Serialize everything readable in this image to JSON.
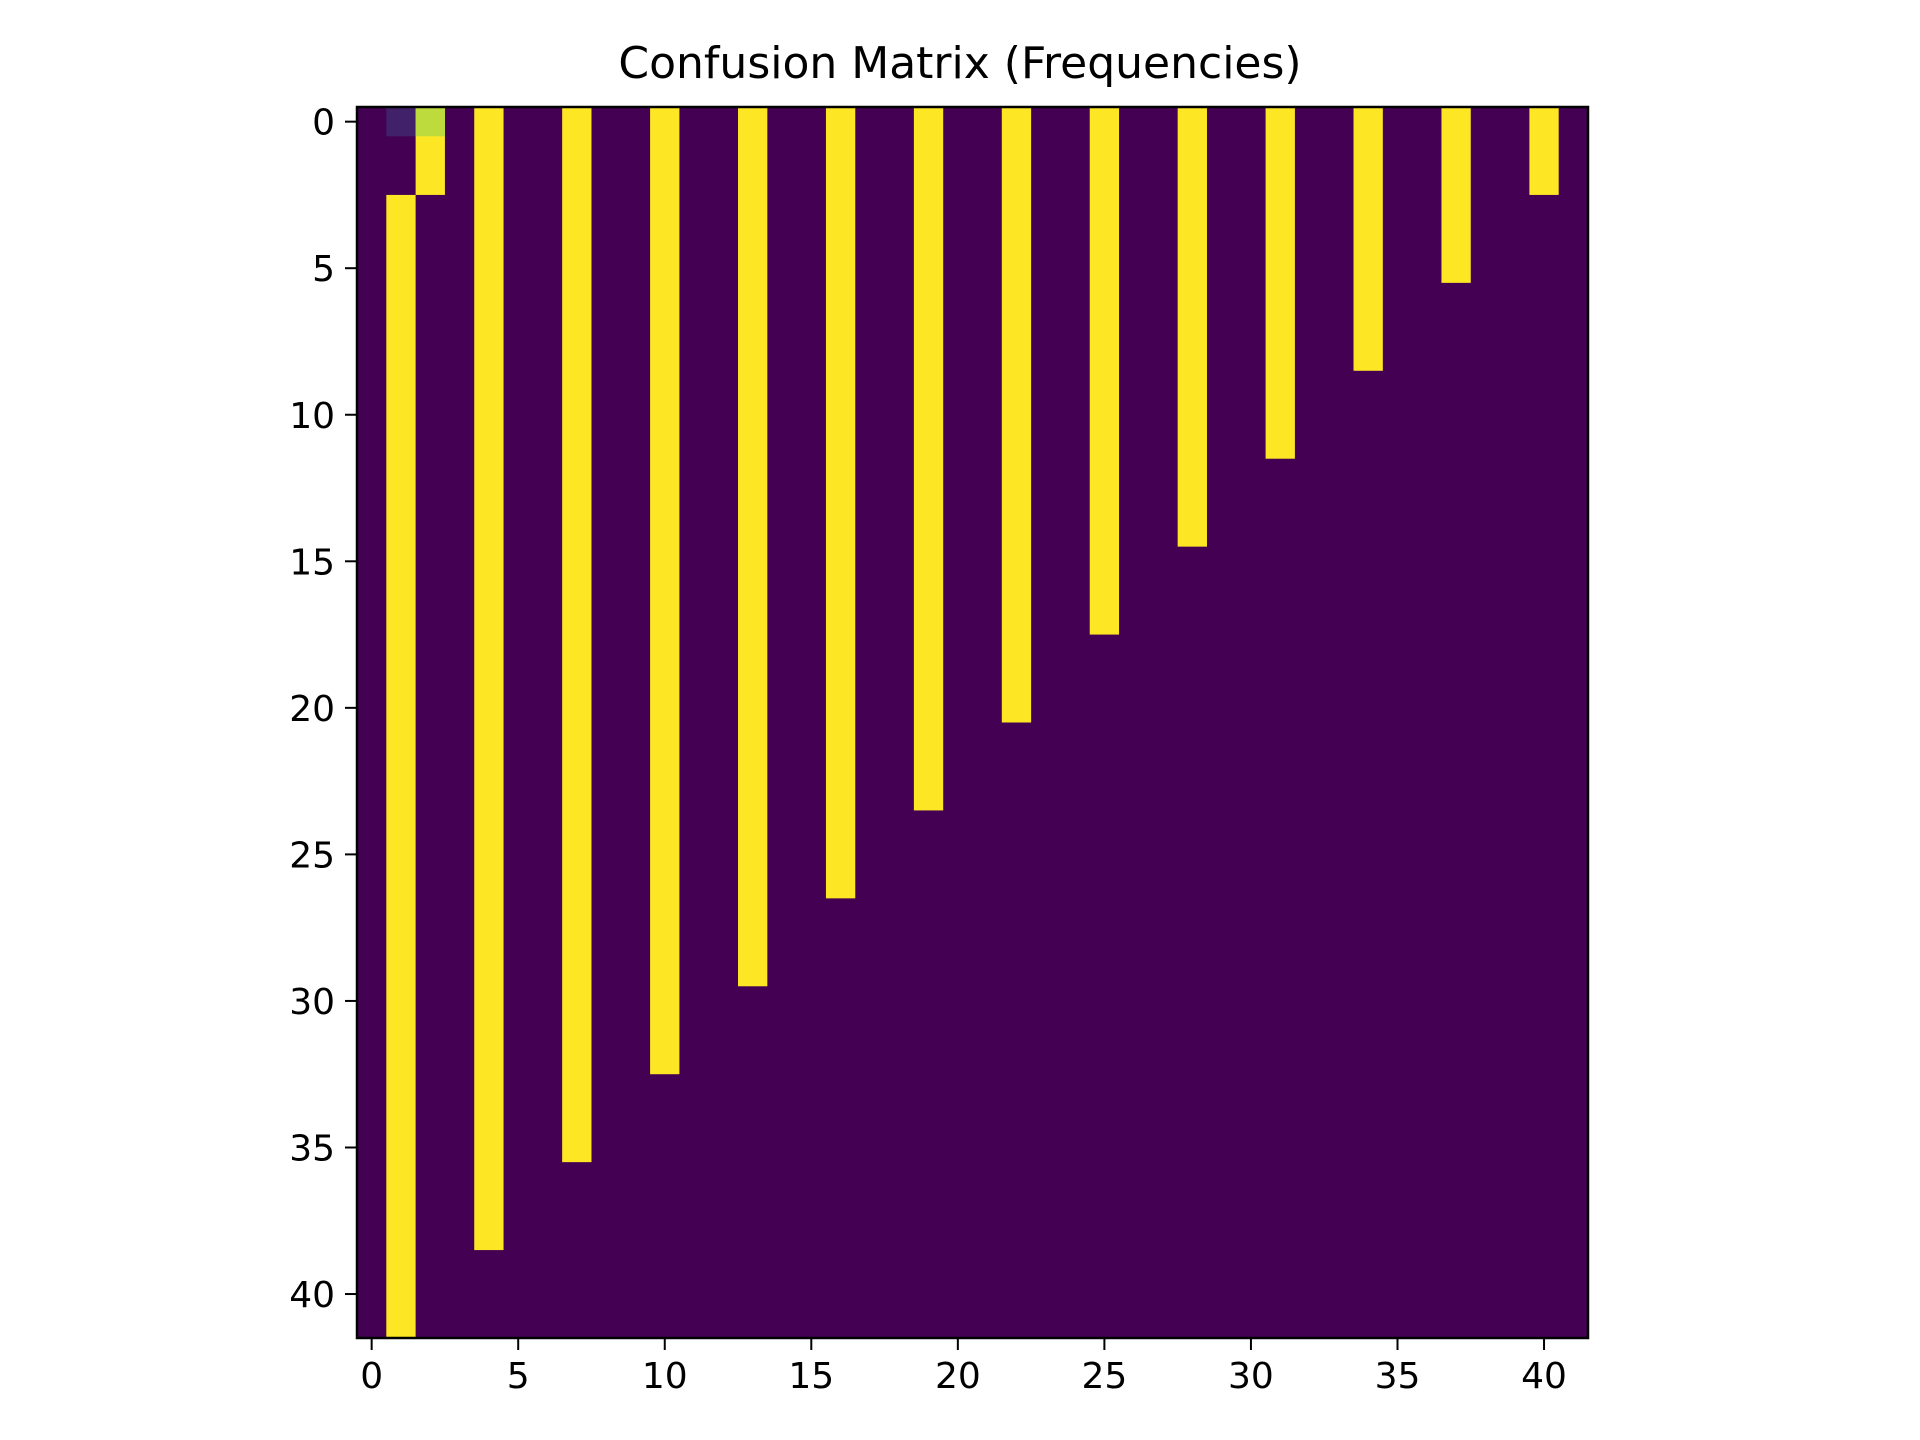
{
  "chart_data": {
    "type": "heatmap",
    "title": "Confusion Matrix (Frequencies)",
    "xlabel": "",
    "ylabel": "",
    "size": 42,
    "x_range": [
      -0.5,
      41.5
    ],
    "y_range": [
      -0.5,
      41.5
    ],
    "y_axis_inverted": true,
    "x_ticks": [
      0,
      5,
      10,
      15,
      20,
      25,
      30,
      35,
      40
    ],
    "y_ticks": [
      0,
      5,
      10,
      15,
      20,
      25,
      30,
      35,
      40
    ],
    "x_tick_labels": [
      "0",
      "5",
      "10",
      "15",
      "20",
      "25",
      "30",
      "35",
      "40"
    ],
    "y_tick_labels": [
      "0",
      "5",
      "10",
      "15",
      "20",
      "25",
      "30",
      "35",
      "40"
    ],
    "colormap": "viridis",
    "value_range": [
      0,
      1
    ],
    "background_value": 0,
    "grid": false,
    "legend": "none",
    "columns": [
      {
        "col": 1,
        "row_start": 3,
        "row_end": 41,
        "value": 1.0
      },
      {
        "col": 2,
        "row_start": 0,
        "row_end": 2,
        "value": 1.0
      },
      {
        "col": 4,
        "row_start": 0,
        "row_end": 38,
        "value": 1.0
      },
      {
        "col": 7,
        "row_start": 0,
        "row_end": 35,
        "value": 1.0
      },
      {
        "col": 10,
        "row_start": 0,
        "row_end": 32,
        "value": 1.0
      },
      {
        "col": 13,
        "row_start": 0,
        "row_end": 29,
        "value": 1.0
      },
      {
        "col": 16,
        "row_start": 0,
        "row_end": 26,
        "value": 1.0
      },
      {
        "col": 19,
        "row_start": 0,
        "row_end": 23,
        "value": 1.0
      },
      {
        "col": 22,
        "row_start": 0,
        "row_end": 20,
        "value": 1.0
      },
      {
        "col": 25,
        "row_start": 0,
        "row_end": 17,
        "value": 1.0
      },
      {
        "col": 28,
        "row_start": 0,
        "row_end": 14,
        "value": 1.0
      },
      {
        "col": 31,
        "row_start": 0,
        "row_end": 11,
        "value": 1.0
      },
      {
        "col": 34,
        "row_start": 0,
        "row_end": 8,
        "value": 1.0
      },
      {
        "col": 37,
        "row_start": 0,
        "row_end": 5,
        "value": 1.0
      },
      {
        "col": 40,
        "row_start": 0,
        "row_end": 2,
        "value": 1.0
      }
    ],
    "cells": [
      {
        "row": 0,
        "col": 1,
        "value": 0.1
      },
      {
        "row": 0,
        "col": 2,
        "value": 0.9
      }
    ],
    "colors": {
      "low": "#440154",
      "high": "#fde725",
      "cell_low_tint": "#453781",
      "cell_high_tint": "#bddf26"
    }
  }
}
